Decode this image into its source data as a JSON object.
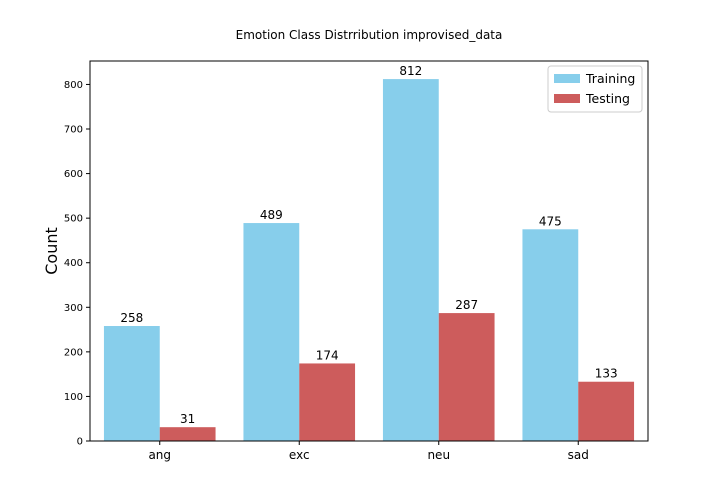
{
  "chart_data": {
    "type": "bar",
    "title": "Emotion Class Distrribution improvised_data",
    "xlabel": "",
    "ylabel": "Count",
    "categories": [
      "ang",
      "exc",
      "neu",
      "sad"
    ],
    "series": [
      {
        "name": "Training",
        "values": [
          258,
          489,
          812,
          475
        ],
        "color": "#87CEEB"
      },
      {
        "name": "Testing",
        "values": [
          31,
          174,
          287,
          133
        ],
        "color": "#CD5C5C"
      }
    ],
    "ylim": [
      0,
      852.6
    ],
    "yticks": [
      0,
      100,
      200,
      300,
      400,
      500,
      600,
      700,
      800
    ],
    "legend_position": "top-right",
    "grid": false
  }
}
